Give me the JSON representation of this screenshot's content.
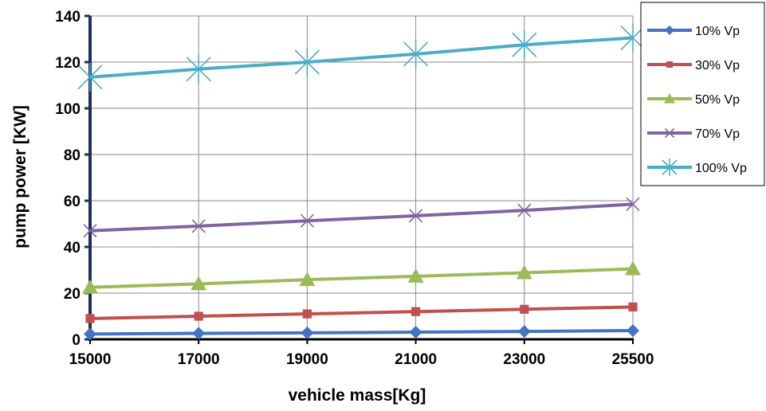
{
  "chart_data": {
    "type": "line",
    "title": "",
    "xlabel": "vehicle mass[Kg]",
    "ylabel": "pump power [KW]",
    "categories": [
      "15000",
      "17000",
      "19000",
      "21000",
      "23000",
      "25500"
    ],
    "ylim": [
      0,
      140
    ],
    "yticks": [
      "0",
      "20",
      "40",
      "60",
      "80",
      "100",
      "120",
      "140"
    ],
    "grid": true,
    "legend_position": "top-right",
    "series": [
      {
        "name": "10% Vp",
        "color": "#4472C4",
        "marker": "diamond",
        "values": [
          2.3,
          2.6,
          2.8,
          3.1,
          3.4,
          3.8
        ]
      },
      {
        "name": "30% Vp",
        "color": "#C0504D",
        "marker": "square",
        "values": [
          9,
          10,
          11,
          12,
          13,
          14
        ]
      },
      {
        "name": "50% Vp",
        "color": "#9BBB59",
        "marker": "triangle",
        "values": [
          22.5,
          24,
          25.8,
          27.3,
          28.8,
          30.5
        ]
      },
      {
        "name": "70% Vp",
        "color": "#8064A2",
        "marker": "x",
        "values": [
          47,
          49,
          51.3,
          53.5,
          55.8,
          58.5
        ]
      },
      {
        "name": "100% Vp",
        "color": "#4BACC6",
        "marker": "asterisk",
        "values": [
          113.5,
          117,
          120,
          123.5,
          127.5,
          130.5
        ]
      }
    ]
  }
}
